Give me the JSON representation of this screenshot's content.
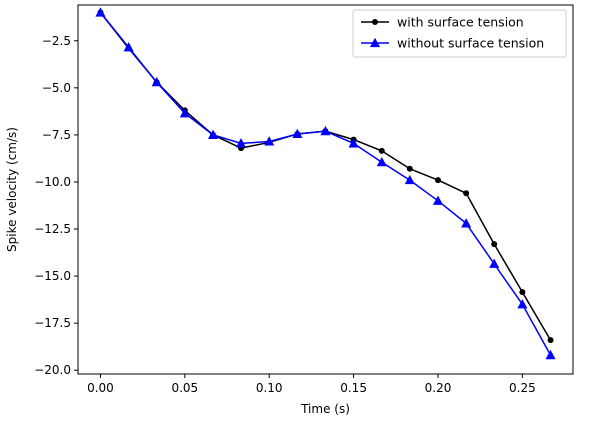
{
  "chart_data": {
    "type": "line",
    "xlabel": "Time (s)",
    "ylabel": "Spike velocity (cm/s)",
    "xlim": [
      -0.0133,
      0.28
    ],
    "ylim": [
      -20.2,
      -0.6
    ],
    "xticks": [
      0.0,
      0.05,
      0.1,
      0.15,
      0.2,
      0.25
    ],
    "xtick_labels": [
      "0.00",
      "0.05",
      "0.10",
      "0.15",
      "0.20",
      "0.25"
    ],
    "yticks": [
      -2.5,
      -5.0,
      -7.5,
      -10.0,
      -12.5,
      -15.0,
      -17.5,
      -20.0
    ],
    "ytick_labels": [
      "−2.5",
      "−5.0",
      "−7.5",
      "−10.0",
      "−12.5",
      "−15.0",
      "−17.5",
      "−20.0"
    ],
    "grid": false,
    "legend_position": "top-right",
    "series": [
      {
        "name": "with surface tension",
        "color": "#000000",
        "marker": "circle",
        "x": [
          0.0,
          0.0167,
          0.0333,
          0.05,
          0.0667,
          0.0833,
          0.1,
          0.1167,
          0.1333,
          0.15,
          0.1667,
          0.1833,
          0.2,
          0.2167,
          0.2333,
          0.25,
          0.2667
        ],
        "y": [
          -1.0,
          -2.9,
          -4.7,
          -6.2,
          -7.5,
          -8.2,
          -7.9,
          -7.45,
          -7.3,
          -7.75,
          -8.35,
          -9.3,
          -9.9,
          -10.6,
          -13.3,
          -15.85,
          -18.4
        ]
      },
      {
        "name": "without surface tension",
        "color": "#0000ff",
        "marker": "triangle",
        "x": [
          0.0,
          0.0167,
          0.0333,
          0.05,
          0.0667,
          0.0833,
          0.1,
          0.1167,
          0.1333,
          0.15,
          0.1667,
          0.1833,
          0.2,
          0.2167,
          0.2333,
          0.25,
          0.2667
        ],
        "y": [
          -1.0,
          -2.85,
          -4.7,
          -6.35,
          -7.5,
          -7.95,
          -7.85,
          -7.45,
          -7.3,
          -7.95,
          -8.95,
          -9.9,
          -11.0,
          -12.2,
          -14.35,
          -16.5,
          -19.2
        ]
      }
    ]
  }
}
